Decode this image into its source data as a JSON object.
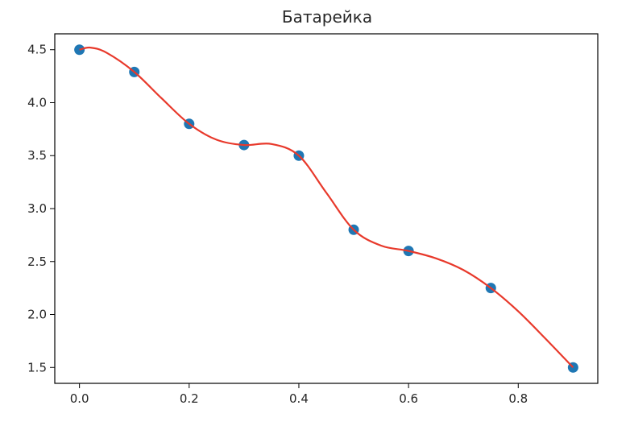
{
  "chart_data": {
    "type": "scatter",
    "title": "Батарейка",
    "xlabel": "",
    "ylabel": "",
    "xlim": [
      -0.045,
      0.945
    ],
    "ylim": [
      1.35,
      4.65
    ],
    "xticks": [
      0.0,
      0.2,
      0.4,
      0.6,
      0.8
    ],
    "xtick_labels": [
      "0.0",
      "0.2",
      "0.4",
      "0.6",
      "0.8"
    ],
    "yticks": [
      1.5,
      2.0,
      2.5,
      3.0,
      3.5,
      4.0,
      4.5
    ],
    "ytick_labels": [
      "1.5",
      "2.0",
      "2.5",
      "3.0",
      "3.5",
      "4.0",
      "4.5"
    ],
    "grid": false,
    "series": [
      {
        "kind": "scatter",
        "color": "#1f77b4",
        "x": [
          0.0,
          0.1,
          0.2,
          0.3,
          0.4,
          0.5,
          0.6,
          0.75,
          0.9
        ],
        "y": [
          4.5,
          4.29,
          3.8,
          3.6,
          3.5,
          2.8,
          2.6,
          2.25,
          1.5
        ]
      },
      {
        "kind": "line",
        "color": "#e8392b",
        "x": [
          0.0,
          0.02,
          0.05,
          0.1,
          0.15,
          0.2,
          0.25,
          0.3,
          0.35,
          0.4,
          0.45,
          0.5,
          0.55,
          0.6,
          0.65,
          0.7,
          0.75,
          0.8,
          0.85,
          0.9
        ],
        "y": [
          4.5,
          4.52,
          4.47,
          4.29,
          4.04,
          3.8,
          3.65,
          3.6,
          3.61,
          3.5,
          3.15,
          2.8,
          2.65,
          2.6,
          2.53,
          2.42,
          2.25,
          2.03,
          1.77,
          1.5
        ]
      }
    ]
  }
}
